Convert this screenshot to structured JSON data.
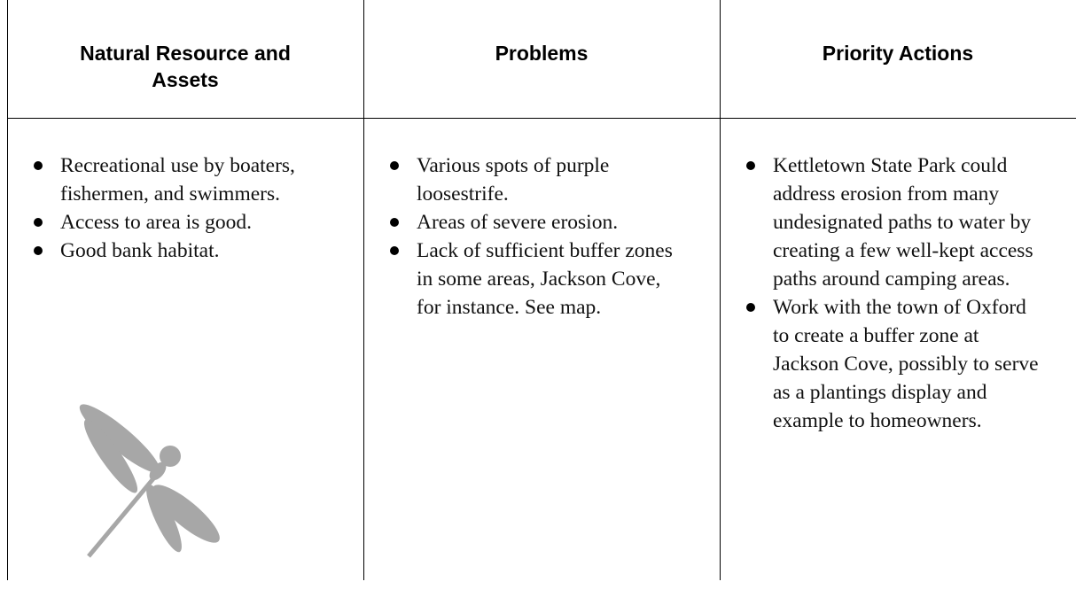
{
  "table": {
    "columns": [
      {
        "header": "Natural Resource and Assets",
        "items": [
          "Recreational use by boaters, fishermen, and swimmers.",
          "Access to area is good.",
          "Good bank habitat."
        ]
      },
      {
        "header": "Problems",
        "items": [
          "Various spots of purple loosestrife.",
          "Areas of severe erosion.",
          "Lack of sufficient buffer zones in some areas, Jackson Cove, for instance.  See map."
        ]
      },
      {
        "header": "Priority Actions",
        "items": [
          "Kettletown State Park could address erosion from many undesignated paths to water by creating a few well-kept access paths around camping areas.",
          "Work with the town of Oxford to create a buffer zone at Jackson Cove, possibly to serve as a plantings display and example to homeowners."
        ]
      }
    ]
  }
}
